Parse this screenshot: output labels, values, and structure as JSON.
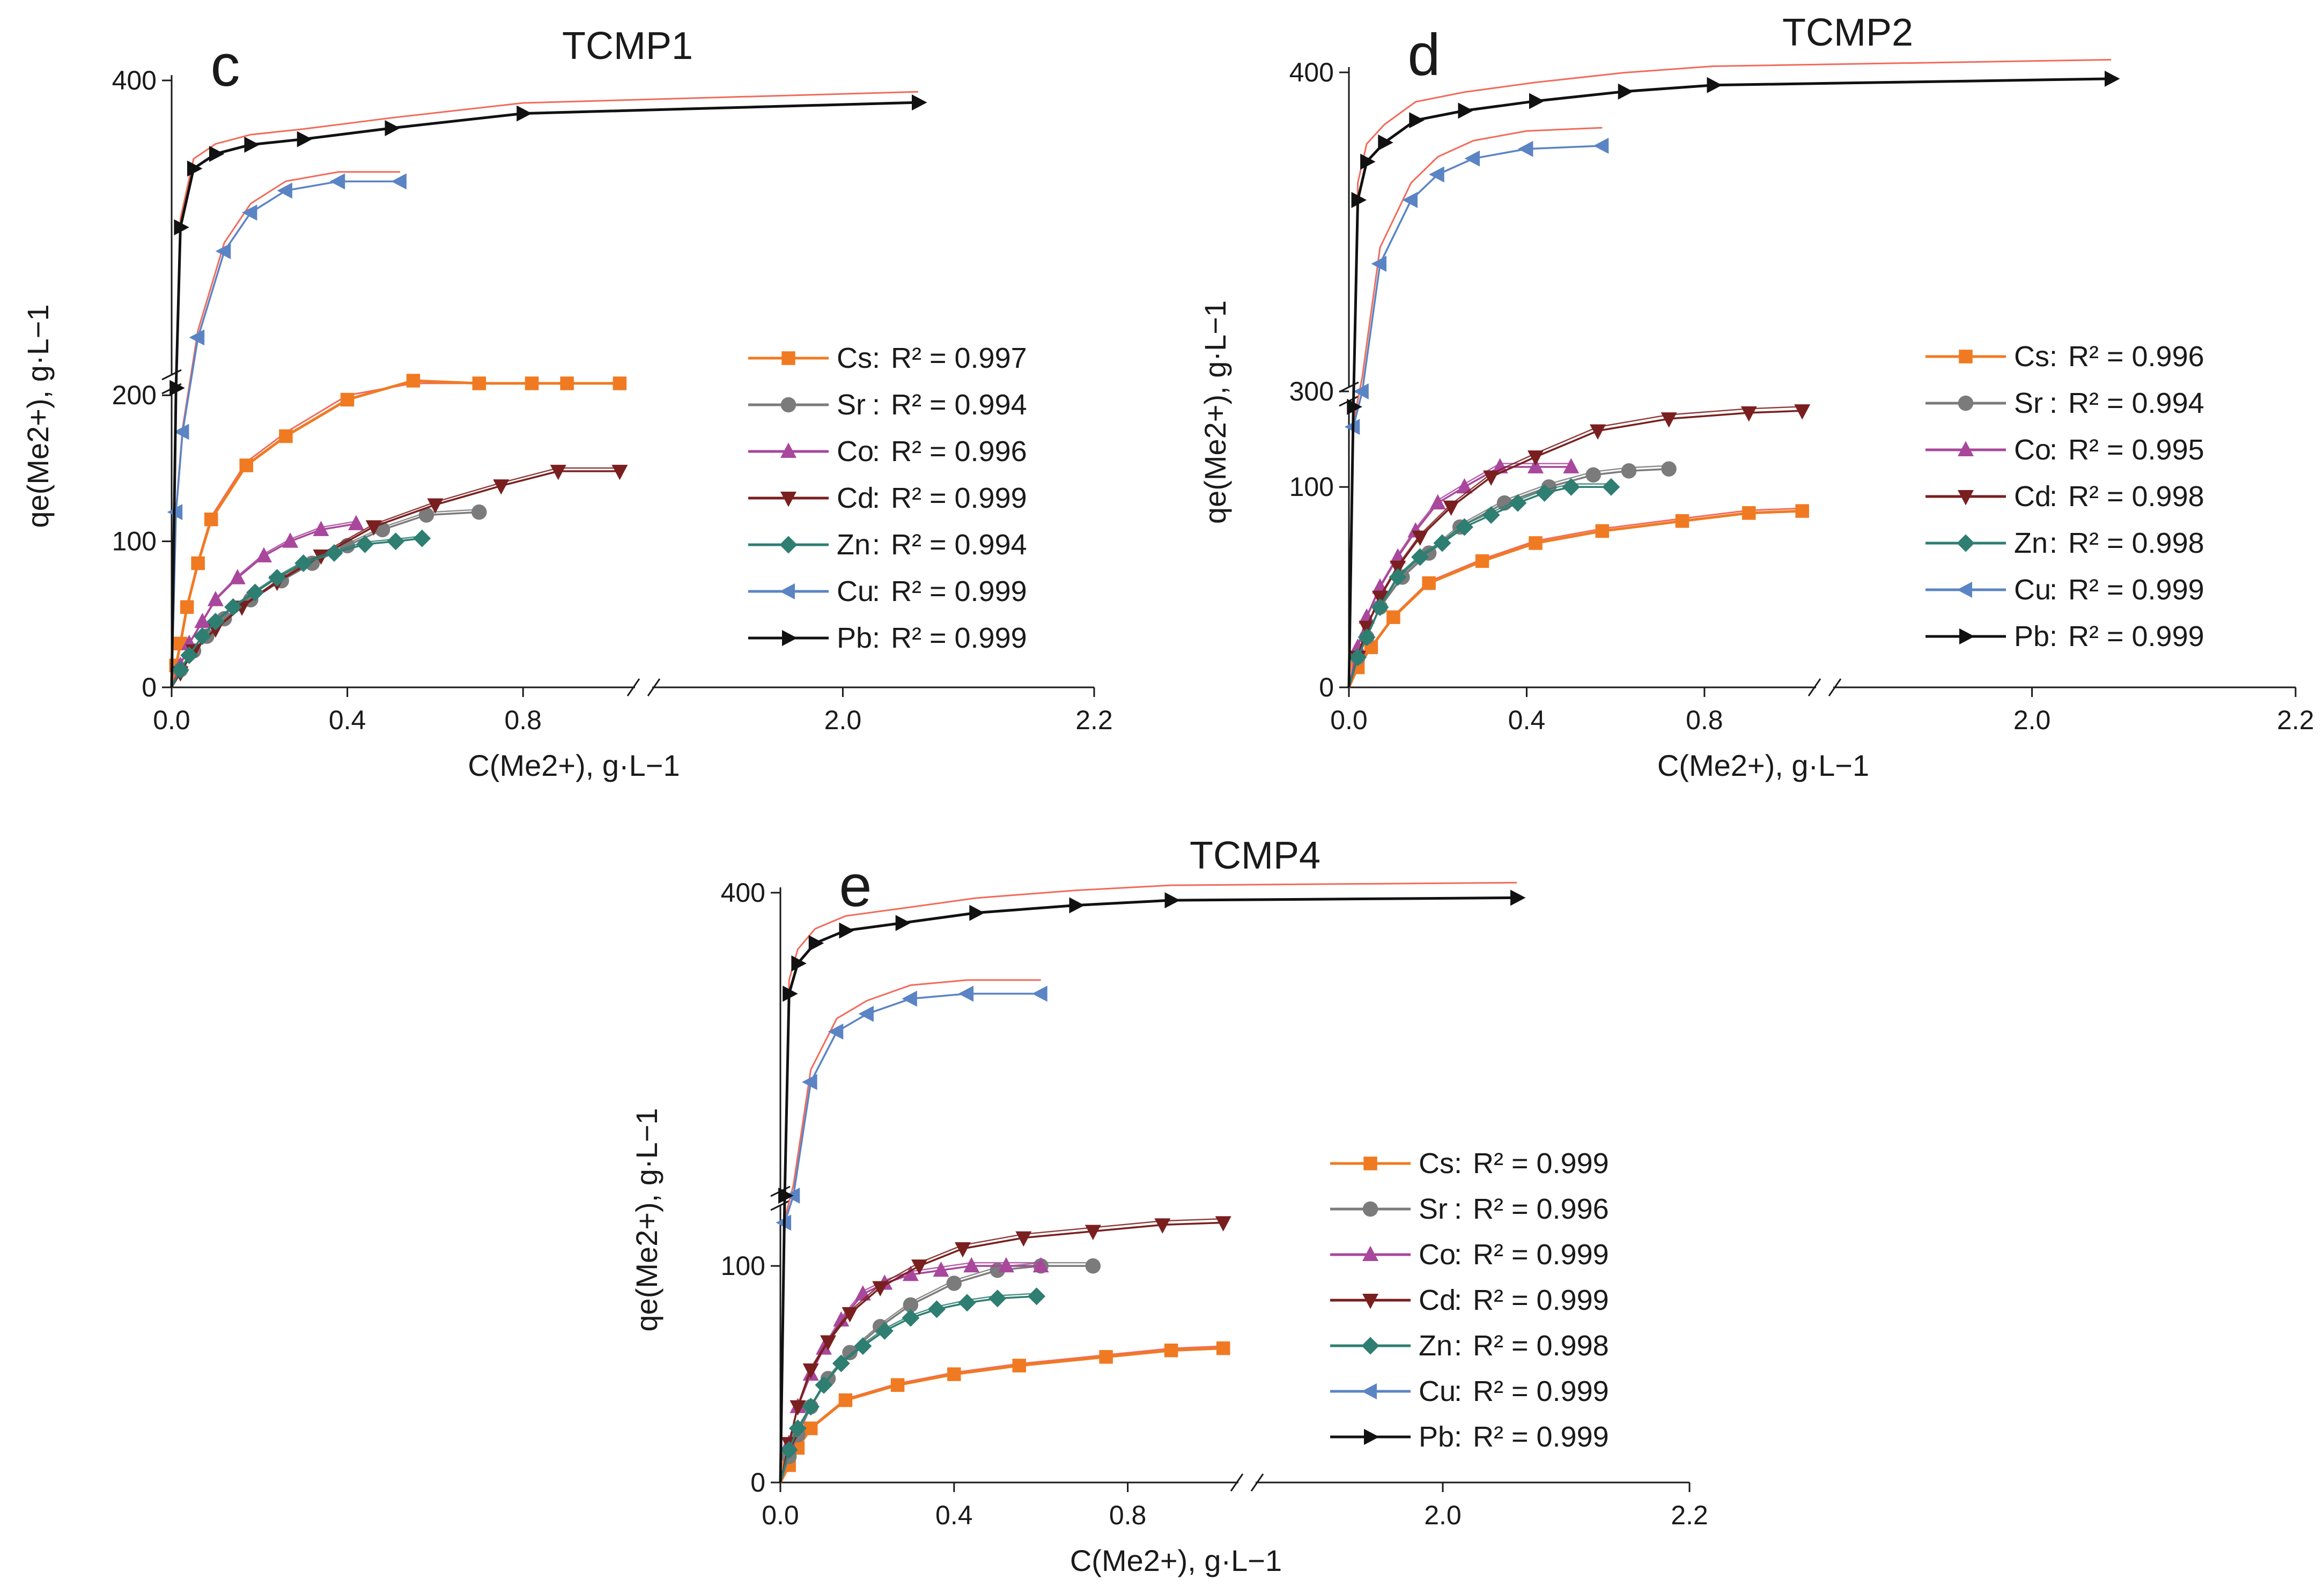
{
  "figure": {
    "description": "Sorption isotherms of metal cations on TCMP sorbents (panels c, d, e)"
  },
  "colors": {
    "Cs": "#f07a22",
    "Sr": "#7b7b7b",
    "Co": "#a8479c",
    "Cd": "#7a1f1f",
    "Zn": "#2e7e72",
    "Cu": "#5b84c4",
    "Pb": "#111111",
    "fit": "#f26b5b",
    "axis": "#1a1a1a"
  },
  "chart_data": [
    {
      "type": "line",
      "panel": "c",
      "title": "TCMP1",
      "xlabel": "C(Me2+), g·L−1",
      "ylabel": "qe(Me2+), g·L−1",
      "x_axis": {
        "break_between": [
          1.02,
          1.9
        ],
        "left_segment": [
          0,
          1.05
        ],
        "right_segment": [
          1.85,
          2.2
        ],
        "tick_labels": [
          "0.0",
          "0.4",
          "0.8",
          "2.0",
          "2.2"
        ],
        "tick_values": [
          0,
          0.4,
          0.8,
          2.0,
          2.2
        ]
      },
      "y_axis": {
        "break_between": [
          210,
          235
        ],
        "lower_segment": [
          0,
          210
        ],
        "upper_segment": [
          235,
          400
        ],
        "tick_labels": [
          "0",
          "100",
          "200",
          "400"
        ],
        "tick_values": [
          0,
          100,
          200,
          400
        ]
      },
      "legend_position": "right",
      "series": [
        {
          "name": "Cs",
          "r2": "R² = 0.997",
          "marker": "square",
          "x": [
            0,
            0.01,
            0.02,
            0.035,
            0.06,
            0.09,
            0.17,
            0.26,
            0.4,
            0.55,
            0.7,
            0.82,
            0.9,
            1.02
          ],
          "y": [
            0,
            15,
            30,
            55,
            85,
            115,
            152,
            172,
            197,
            210,
            217,
            222,
            224,
            224
          ]
        },
        {
          "name": "Sr",
          "r2": "R² = 0.994",
          "marker": "circle",
          "x": [
            0,
            0.02,
            0.05,
            0.08,
            0.12,
            0.18,
            0.25,
            0.32,
            0.4,
            0.48,
            0.58,
            0.7
          ],
          "y": [
            0,
            12,
            25,
            35,
            47,
            60,
            73,
            85,
            97,
            108,
            118,
            120
          ]
        },
        {
          "name": "Co",
          "r2": "R² = 0.996",
          "marker": "triangle-up",
          "x": [
            0,
            0.02,
            0.04,
            0.07,
            0.1,
            0.15,
            0.21,
            0.27,
            0.34,
            0.42
          ],
          "y": [
            0,
            15,
            30,
            45,
            60,
            75,
            90,
            100,
            108,
            112
          ]
        },
        {
          "name": "Cd",
          "r2": "R² = 0.999",
          "marker": "triangle-down",
          "x": [
            0,
            0.02,
            0.05,
            0.1,
            0.16,
            0.24,
            0.34,
            0.46,
            0.6,
            0.75,
            0.88,
            1.02
          ],
          "y": [
            0,
            10,
            25,
            40,
            55,
            72,
            90,
            110,
            125,
            138,
            148,
            148
          ]
        },
        {
          "name": "Zn",
          "r2": "R² = 0.994",
          "marker": "diamond",
          "x": [
            0,
            0.02,
            0.04,
            0.07,
            0.1,
            0.14,
            0.19,
            0.24,
            0.3,
            0.37,
            0.44,
            0.51,
            0.57
          ],
          "y": [
            0,
            12,
            22,
            35,
            45,
            55,
            65,
            75,
            85,
            92,
            98,
            100,
            102
          ]
        },
        {
          "name": "Cu",
          "r2": "R² = 0.999",
          "marker": "triangle-left",
          "x": [
            0,
            0.01,
            0.025,
            0.06,
            0.12,
            0.18,
            0.26,
            0.38,
            0.52
          ],
          "y": [
            0,
            120,
            175,
            260,
            307,
            328,
            340,
            345,
            345
          ]
        },
        {
          "name": "Pb",
          "r2": "R² = 0.999",
          "marker": "triangle-right",
          "x": [
            0,
            0.01,
            0.02,
            0.05,
            0.1,
            0.18,
            0.3,
            0.5,
            0.8,
            2.06
          ],
          "y": [
            0,
            205,
            320,
            352,
            360,
            365,
            368,
            374,
            382,
            388
          ]
        }
      ]
    },
    {
      "type": "line",
      "panel": "d",
      "title": "TCMP2",
      "xlabel": "C(Me2+), g·L−1",
      "ylabel": "qe(Me2+), g·L−1",
      "x_axis": {
        "break_between": [
          1.02,
          1.9
        ],
        "left_segment": [
          0,
          1.05
        ],
        "right_segment": [
          1.85,
          2.2
        ],
        "tick_labels": [
          "0.0",
          "0.4",
          "0.8",
          "2.0",
          "2.2"
        ],
        "tick_values": [
          0,
          0.4,
          0.8,
          2.0,
          2.2
        ]
      },
      "y_axis": {
        "break_between": [
          145,
          300
        ],
        "lower_segment": [
          0,
          145
        ],
        "upper_segment": [
          300,
          400
        ],
        "tick_labels": [
          "0",
          "100",
          "300",
          "400"
        ],
        "tick_values": [
          0,
          100,
          300,
          400
        ]
      },
      "legend_position": "right",
      "series": [
        {
          "name": "Cs",
          "r2": "R² = 0.996",
          "marker": "square",
          "x": [
            0,
            0.02,
            0.05,
            0.1,
            0.18,
            0.3,
            0.42,
            0.57,
            0.75,
            0.9,
            1.02
          ],
          "y": [
            0,
            10,
            20,
            35,
            52,
            63,
            72,
            78,
            83,
            87,
            88
          ]
        },
        {
          "name": "Sr",
          "r2": "R² = 0.994",
          "marker": "circle",
          "x": [
            0,
            0.02,
            0.04,
            0.07,
            0.12,
            0.18,
            0.25,
            0.35,
            0.45,
            0.55,
            0.63,
            0.72
          ],
          "y": [
            0,
            15,
            25,
            40,
            55,
            67,
            80,
            92,
            100,
            106,
            108,
            109
          ]
        },
        {
          "name": "Co",
          "r2": "R² = 0.995",
          "marker": "triangle-up",
          "x": [
            0,
            0.02,
            0.04,
            0.07,
            0.11,
            0.15,
            0.2,
            0.26,
            0.34,
            0.42,
            0.5
          ],
          "y": [
            0,
            20,
            35,
            50,
            65,
            78,
            92,
            100,
            110,
            110,
            110
          ]
        },
        {
          "name": "Cd",
          "r2": "R² = 0.998",
          "marker": "triangle-down",
          "x": [
            0,
            0.02,
            0.04,
            0.07,
            0.11,
            0.16,
            0.23,
            0.32,
            0.42,
            0.56,
            0.72,
            0.9,
            1.02
          ],
          "y": [
            0,
            15,
            30,
            45,
            60,
            75,
            90,
            105,
            115,
            128,
            134,
            137,
            138
          ]
        },
        {
          "name": "Zn",
          "r2": "R² = 0.998",
          "marker": "diamond",
          "x": [
            0,
            0.02,
            0.04,
            0.07,
            0.11,
            0.16,
            0.21,
            0.26,
            0.32,
            0.38,
            0.44,
            0.5,
            0.59
          ],
          "y": [
            0,
            15,
            25,
            40,
            55,
            65,
            72,
            80,
            86,
            92,
            97,
            100,
            100
          ]
        },
        {
          "name": "Cu",
          "r2": "R² = 0.999",
          "marker": "triangle-left",
          "x": [
            0,
            0.01,
            0.03,
            0.07,
            0.14,
            0.2,
            0.28,
            0.4,
            0.57
          ],
          "y": [
            0,
            130,
            300,
            340,
            360,
            368,
            373,
            376,
            377
          ]
        },
        {
          "name": "Pb",
          "r2": "R² = 0.999",
          "marker": "triangle-right",
          "x": [
            0,
            0.01,
            0.02,
            0.04,
            0.08,
            0.15,
            0.26,
            0.42,
            0.62,
            0.82,
            2.06
          ],
          "y": [
            0,
            140,
            360,
            372,
            378,
            385,
            388,
            391,
            394,
            396,
            398
          ]
        }
      ]
    },
    {
      "type": "line",
      "panel": "e",
      "title": "TCMP4",
      "xlabel": "C(Me2+), g·L−1",
      "ylabel": "qe(Me2+), g·L−1",
      "x_axis": {
        "break_between": [
          1.02,
          1.9
        ],
        "left_segment": [
          0,
          1.05
        ],
        "right_segment": [
          1.85,
          2.2
        ],
        "tick_labels": [
          "0.0",
          "0.4",
          "0.8",
          "2.0",
          "2.2"
        ],
        "tick_values": [
          0,
          0.4,
          0.8,
          2.0,
          2.2
        ]
      },
      "y_axis": {
        "break_between": [
          130,
          280
        ],
        "lower_segment": [
          0,
          130
        ],
        "upper_segment": [
          280,
          400
        ],
        "tick_labels": [
          "0",
          "100",
          "400"
        ],
        "tick_values": [
          0,
          100,
          400
        ]
      },
      "legend_position": "right",
      "series": [
        {
          "name": "Cs",
          "r2": "R² = 0.999",
          "marker": "square",
          "x": [
            0,
            0.02,
            0.04,
            0.07,
            0.15,
            0.27,
            0.4,
            0.55,
            0.75,
            0.9,
            1.02
          ],
          "y": [
            0,
            8,
            16,
            25,
            38,
            45,
            50,
            54,
            58,
            61,
            62
          ]
        },
        {
          "name": "Sr",
          "r2": "R² = 0.996",
          "marker": "circle",
          "x": [
            0,
            0.02,
            0.04,
            0.07,
            0.11,
            0.16,
            0.23,
            0.3,
            0.4,
            0.5,
            0.6,
            0.72
          ],
          "y": [
            0,
            12,
            22,
            35,
            48,
            60,
            72,
            82,
            92,
            98,
            100,
            100
          ]
        },
        {
          "name": "Co",
          "r2": "R² = 0.999",
          "marker": "triangle-up",
          "x": [
            0,
            0.02,
            0.04,
            0.07,
            0.1,
            0.14,
            0.19,
            0.24,
            0.3,
            0.37,
            0.44,
            0.52,
            0.6
          ],
          "y": [
            0,
            18,
            35,
            50,
            62,
            75,
            87,
            92,
            96,
            98,
            100,
            100,
            100
          ]
        },
        {
          "name": "Cd",
          "r2": "R² = 0.999",
          "marker": "triangle-down",
          "x": [
            0,
            0.02,
            0.04,
            0.07,
            0.11,
            0.16,
            0.23,
            0.32,
            0.42,
            0.56,
            0.72,
            0.88,
            1.02
          ],
          "y": [
            0,
            18,
            35,
            52,
            65,
            78,
            90,
            100,
            108,
            113,
            116,
            119,
            120
          ]
        },
        {
          "name": "Zn",
          "r2": "R² = 0.998",
          "marker": "diamond",
          "x": [
            0,
            0.02,
            0.04,
            0.07,
            0.1,
            0.14,
            0.19,
            0.24,
            0.3,
            0.36,
            0.43,
            0.5,
            0.59
          ],
          "y": [
            0,
            15,
            25,
            35,
            45,
            55,
            63,
            70,
            76,
            80,
            83,
            85,
            86
          ]
        },
        {
          "name": "Cu",
          "r2": "R² = 0.999",
          "marker": "triangle-left",
          "x": [
            0,
            0.01,
            0.03,
            0.07,
            0.13,
            0.2,
            0.3,
            0.43,
            0.6
          ],
          "y": [
            0,
            120,
            280,
            325,
            345,
            352,
            358,
            360,
            360
          ]
        },
        {
          "name": "Pb",
          "r2": "R² = 0.999",
          "marker": "triangle-right",
          "x": [
            0,
            0.01,
            0.02,
            0.04,
            0.08,
            0.15,
            0.28,
            0.45,
            0.68,
            0.9,
            2.06
          ],
          "y": [
            0,
            150,
            360,
            372,
            380,
            385,
            388,
            392,
            395,
            397,
            398
          ]
        }
      ]
    }
  ]
}
